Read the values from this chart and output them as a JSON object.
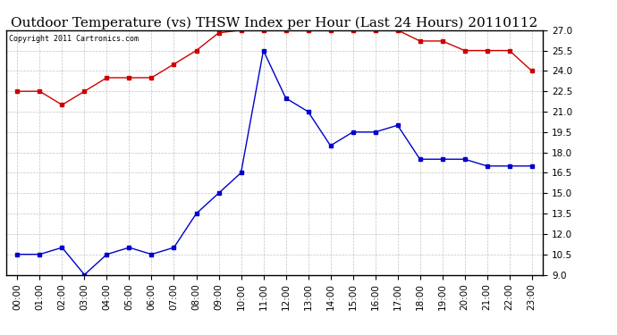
{
  "title": "Outdoor Temperature (vs) THSW Index per Hour (Last 24 Hours) 20110112",
  "copyright": "Copyright 2011 Cartronics.com",
  "hours": [
    "00:00",
    "01:00",
    "02:00",
    "03:00",
    "04:00",
    "05:00",
    "06:00",
    "07:00",
    "08:00",
    "09:00",
    "10:00",
    "11:00",
    "12:00",
    "13:00",
    "14:00",
    "15:00",
    "16:00",
    "17:00",
    "18:00",
    "19:00",
    "20:00",
    "21:00",
    "22:00",
    "23:00"
  ],
  "red_data": [
    22.5,
    22.5,
    21.5,
    22.5,
    23.5,
    23.5,
    23.5,
    24.5,
    25.5,
    26.8,
    27.0,
    27.0,
    27.0,
    27.0,
    27.0,
    27.0,
    27.0,
    27.0,
    26.2,
    26.2,
    25.5,
    25.5,
    25.5,
    24.0
  ],
  "blue_data": [
    10.5,
    10.5,
    11.0,
    9.0,
    10.5,
    11.0,
    10.5,
    11.0,
    13.5,
    15.0,
    16.5,
    25.5,
    22.0,
    21.0,
    18.5,
    19.5,
    19.5,
    20.0,
    17.5,
    17.5,
    17.5,
    17.0,
    17.0,
    17.0
  ],
  "ylim": [
    9.0,
    27.0
  ],
  "yticks": [
    9.0,
    10.5,
    12.0,
    13.5,
    15.0,
    16.5,
    18.0,
    19.5,
    21.0,
    22.5,
    24.0,
    25.5,
    27.0
  ],
  "background_color": "#ffffff",
  "grid_color": "#aaaaaa",
  "red_color": "#cc0000",
  "blue_color": "#0000cc",
  "title_fontsize": 11,
  "tick_fontsize": 7.5,
  "copyright_fontsize": 6
}
